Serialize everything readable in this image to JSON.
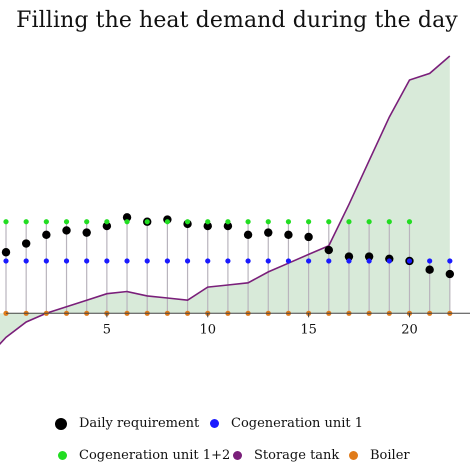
{
  "chart_data": {
    "type": "line",
    "title": "Filling the heat demand during the day",
    "xlabel": "",
    "ylabel": "",
    "xlim": [
      0,
      23
    ],
    "x_ticks": [
      5,
      10,
      15,
      20
    ],
    "ylim": [
      -1.3,
      5.9
    ],
    "grid": false,
    "legend_position": "bottom",
    "series": [
      {
        "name": "Daily requirement",
        "kind": "points",
        "color": "#000000",
        "x": [
          0,
          1,
          2,
          3,
          4,
          5,
          6,
          7,
          8,
          9,
          10,
          11,
          12,
          13,
          14,
          15,
          16,
          17,
          18,
          19,
          20,
          21,
          22
        ],
        "y": [
          1.4,
          1.6,
          1.8,
          1.9,
          1.85,
          2.0,
          2.2,
          2.1,
          2.15,
          2.05,
          2.0,
          2.0,
          1.8,
          1.85,
          1.8,
          1.75,
          1.45,
          1.3,
          1.3,
          1.25,
          1.2,
          1.0,
          0.9
        ]
      },
      {
        "name": "Cogeneration unit 1",
        "kind": "points",
        "color": "#1a1aff",
        "x": [
          0,
          1,
          2,
          3,
          4,
          5,
          6,
          7,
          8,
          9,
          10,
          11,
          12,
          13,
          14,
          15,
          16,
          17,
          18,
          19,
          20,
          21,
          22
        ],
        "y": [
          1.2,
          1.2,
          1.2,
          1.2,
          1.2,
          1.2,
          1.2,
          1.2,
          1.2,
          1.2,
          1.2,
          1.2,
          1.2,
          1.2,
          1.2,
          1.2,
          1.2,
          1.2,
          1.2,
          1.2,
          1.2,
          1.2,
          1.2
        ]
      },
      {
        "name": "Cogeneration unit 1+2",
        "kind": "points",
        "color": "#22dd22",
        "x": [
          0,
          1,
          2,
          3,
          4,
          5,
          6,
          7,
          8,
          9,
          10,
          11,
          12,
          13,
          14,
          15,
          16,
          17,
          18,
          19,
          20
        ],
        "y": [
          2.1,
          2.1,
          2.1,
          2.1,
          2.1,
          2.1,
          2.1,
          2.1,
          2.1,
          2.1,
          2.1,
          2.1,
          2.1,
          2.1,
          2.1,
          2.1,
          2.1,
          2.1,
          2.1,
          2.1,
          2.1
        ]
      },
      {
        "name": "Storage tank",
        "kind": "area-line",
        "color": "#7a1f7a",
        "fill": "#d8ead9",
        "x": [
          -0.5,
          0,
          1,
          2,
          3,
          4,
          5,
          6,
          7,
          8,
          9,
          10,
          11,
          12,
          13,
          14,
          15,
          16,
          17,
          18,
          19,
          20,
          21,
          22
        ],
        "y": [
          -0.8,
          -0.55,
          -0.2,
          0.0,
          0.15,
          0.3,
          0.45,
          0.5,
          0.4,
          0.35,
          0.3,
          0.6,
          0.65,
          0.7,
          0.95,
          1.15,
          1.35,
          1.55,
          2.5,
          3.5,
          4.5,
          5.35,
          5.5,
          5.9
        ]
      },
      {
        "name": "Boiler",
        "kind": "points",
        "color": "#e07b1a",
        "x": [
          0,
          1,
          2,
          3,
          4,
          5,
          6,
          7,
          8,
          9,
          10,
          11,
          12,
          13,
          14,
          15,
          16,
          17,
          18,
          19,
          20,
          21,
          22
        ],
        "y": [
          0,
          0,
          0,
          0,
          0,
          0,
          0,
          0,
          0,
          0,
          0,
          0,
          0,
          0,
          0,
          0,
          0,
          0,
          0,
          0,
          0,
          0,
          0
        ]
      }
    ]
  }
}
